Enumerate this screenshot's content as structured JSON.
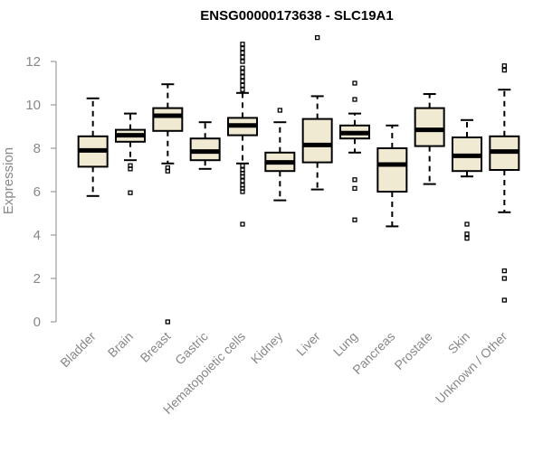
{
  "chart_data": {
    "type": "boxplot",
    "title": "ENSG00000173638 - SLC19A1",
    "xlabel": "",
    "ylabel": "Expression",
    "ylim": [
      0,
      13
    ],
    "yticks": [
      0,
      2,
      4,
      6,
      8,
      10,
      12
    ],
    "box_fill": "#f0ead2",
    "series": [
      {
        "name": "Bladder",
        "whisker_low": 5.8,
        "q1": 7.15,
        "median": 7.9,
        "q3": 8.55,
        "whisker_high": 10.3,
        "outliers": []
      },
      {
        "name": "Brain",
        "whisker_low": 7.45,
        "q1": 8.3,
        "median": 8.6,
        "q3": 8.85,
        "whisker_high": 9.6,
        "outliers": [
          7.2,
          7.05,
          5.95
        ]
      },
      {
        "name": "Breast",
        "whisker_low": 7.3,
        "q1": 8.8,
        "median": 9.5,
        "q3": 9.85,
        "whisker_high": 10.95,
        "outliers": [
          7.1,
          6.95,
          0.0
        ]
      },
      {
        "name": "Gastric",
        "whisker_low": 7.05,
        "q1": 7.45,
        "median": 7.85,
        "q3": 8.45,
        "whisker_high": 9.2,
        "outliers": []
      },
      {
        "name": "Hematopoietic cells",
        "whisker_low": 7.3,
        "q1": 8.6,
        "median": 9.05,
        "q3": 9.4,
        "whisker_high": 10.55,
        "outliers": [
          12.8,
          12.6,
          12.4,
          12.2,
          12.0,
          11.7,
          11.5,
          11.3,
          11.1,
          10.9,
          10.7,
          7.2,
          7.0,
          6.85,
          6.7,
          6.5,
          6.3,
          6.15,
          6.0,
          4.5
        ]
      },
      {
        "name": "Kidney",
        "whisker_low": 5.6,
        "q1": 6.95,
        "median": 7.35,
        "q3": 7.8,
        "whisker_high": 9.2,
        "outliers": [
          9.75
        ]
      },
      {
        "name": "Liver",
        "whisker_low": 6.1,
        "q1": 7.35,
        "median": 8.15,
        "q3": 9.35,
        "whisker_high": 10.4,
        "outliers": [
          13.1
        ]
      },
      {
        "name": "Lung",
        "whisker_low": 7.8,
        "q1": 8.45,
        "median": 8.7,
        "q3": 9.05,
        "whisker_high": 9.6,
        "outliers": [
          11.0,
          10.25,
          6.55,
          6.15,
          4.7
        ]
      },
      {
        "name": "Pancreas",
        "whisker_low": 4.4,
        "q1": 6.0,
        "median": 7.25,
        "q3": 8.0,
        "whisker_high": 9.05,
        "outliers": []
      },
      {
        "name": "Prostate",
        "whisker_low": 6.35,
        "q1": 8.1,
        "median": 8.85,
        "q3": 9.85,
        "whisker_high": 10.5,
        "outliers": []
      },
      {
        "name": "Skin",
        "whisker_low": 6.7,
        "q1": 6.95,
        "median": 7.65,
        "q3": 8.5,
        "whisker_high": 9.3,
        "outliers": [
          4.5,
          4.05,
          3.85
        ]
      },
      {
        "name": "Unknown / Other",
        "whisker_low": 5.05,
        "q1": 7.0,
        "median": 7.85,
        "q3": 8.55,
        "whisker_high": 10.7,
        "outliers": [
          11.8,
          11.6,
          2.35,
          2.0,
          1.0
        ]
      }
    ]
  }
}
